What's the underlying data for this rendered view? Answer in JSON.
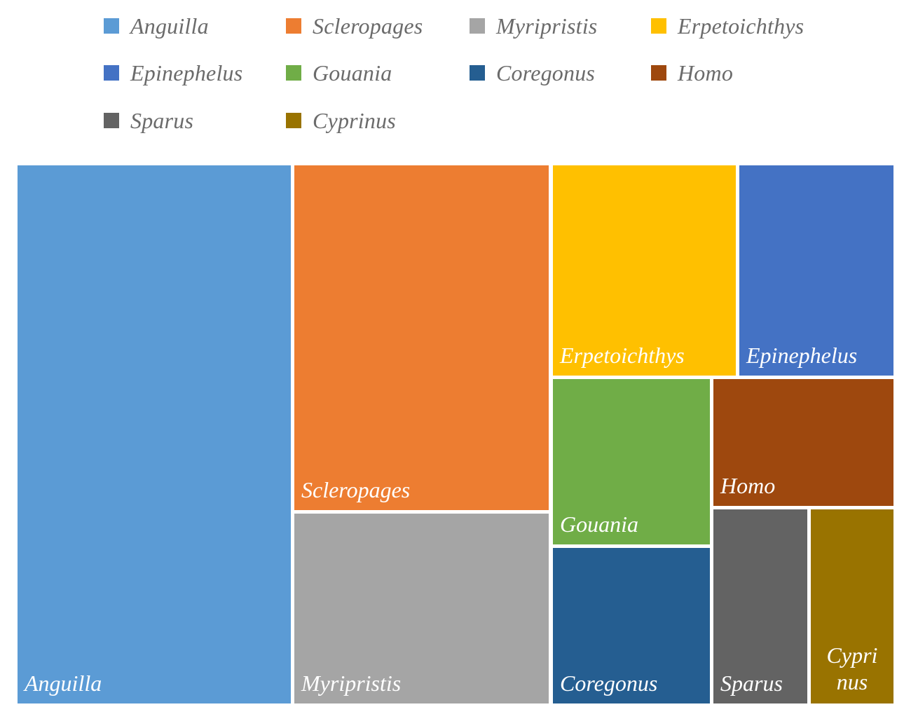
{
  "chart_data": {
    "type": "treemap",
    "title": "",
    "legend_position": "top",
    "series": [
      {
        "name": "Anguilla",
        "value": 300,
        "color": "#5b9bd5"
      },
      {
        "name": "Scleropages",
        "value": 178,
        "color": "#ed7d31"
      },
      {
        "name": "Myripristis",
        "value": 97,
        "color": "#a5a5a5"
      },
      {
        "name": "Erpetoichthys",
        "value": 79,
        "color": "#ffc000"
      },
      {
        "name": "Epinephelus",
        "value": 66,
        "color": "#4472c4"
      },
      {
        "name": "Gouania",
        "value": 53,
        "color": "#70ad47"
      },
      {
        "name": "Coregonus",
        "value": 50,
        "color": "#255e91"
      },
      {
        "name": "Homo",
        "value": 46,
        "color": "#9e480e"
      },
      {
        "name": "Sparus",
        "value": 37,
        "color": "#636363"
      },
      {
        "name": "Cyprinus",
        "value": 34,
        "color": "#997300"
      }
    ],
    "labels": {
      "Anguilla": "Anguilla",
      "Scleropages": "Scleropages",
      "Myripristis": "Myripristis",
      "Erpetoichthys": "Erpetoichthys",
      "Epinephelus": "Epinephelus",
      "Gouania": "Gouania",
      "Coregonus": "Coregonus",
      "Homo": "Homo",
      "Sparus": "Sparus",
      "Cyprinus": "Cypri nus"
    }
  }
}
